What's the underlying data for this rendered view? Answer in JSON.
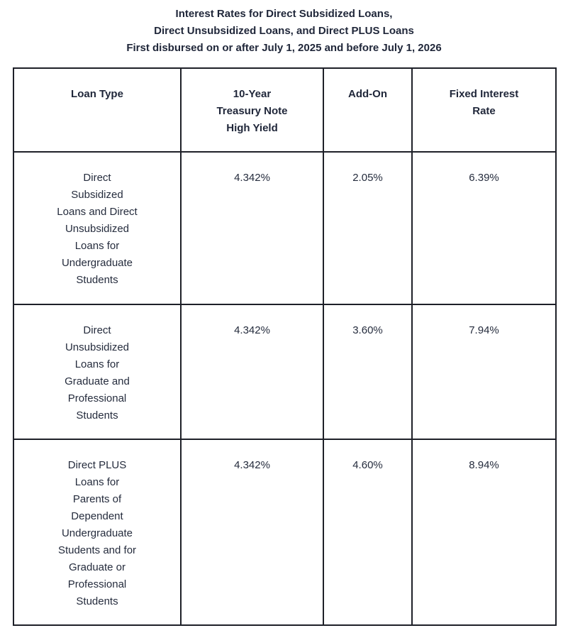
{
  "title": {
    "lines": [
      "Interest Rates for Direct Subsidized Loans,",
      "Direct Unsubsidized Loans, and Direct PLUS Loans",
      "First disbursed on or after July 1, 2025 and before July 1, 2026"
    ]
  },
  "colors": {
    "text": "#252c3d",
    "title_text": "#1f2639",
    "border": "#1e2028",
    "background": "#ffffff"
  },
  "table": {
    "headers": [
      "Loan Type",
      "10-Year\nTreasury Note\nHigh Yield",
      "Add-On",
      "Fixed Interest\nRate"
    ],
    "rows": [
      {
        "loan_type": "Direct\nSubsidized\nLoans and Direct\nUnsubsidized\nLoans for\nUndergraduate\nStudents",
        "treasury_yield": "4.342%",
        "add_on": "2.05%",
        "fixed_rate": "6.39%"
      },
      {
        "loan_type": "Direct\nUnsubsidized\nLoans for\nGraduate and\nProfessional\nStudents",
        "treasury_yield": "4.342%",
        "add_on": "3.60%",
        "fixed_rate": "7.94%"
      },
      {
        "loan_type": "Direct PLUS\nLoans for\nParents of\nDependent\nUndergraduate\nStudents and for\nGraduate or\nProfessional\nStudents",
        "treasury_yield": "4.342%",
        "add_on": "4.60%",
        "fixed_rate": "8.94%"
      }
    ]
  },
  "chart_data": {
    "type": "table",
    "title": "Interest Rates for Direct Subsidized Loans, Direct Unsubsidized Loans, and Direct PLUS Loans — First disbursed on or after July 1, 2025 and before July 1, 2026",
    "columns": [
      "Loan Type",
      "10-Year Treasury Note High Yield",
      "Add-On",
      "Fixed Interest Rate"
    ],
    "records": [
      [
        "Direct Subsidized Loans and Direct Unsubsidized Loans for Undergraduate Students",
        "4.342%",
        "2.05%",
        "6.39%"
      ],
      [
        "Direct Unsubsidized Loans for Graduate and Professional Students",
        "4.342%",
        "3.60%",
        "7.94%"
      ],
      [
        "Direct PLUS Loans for Parents of Dependent Undergraduate Students and for Graduate or Professional Students",
        "4.342%",
        "4.60%",
        "8.94%"
      ]
    ]
  }
}
